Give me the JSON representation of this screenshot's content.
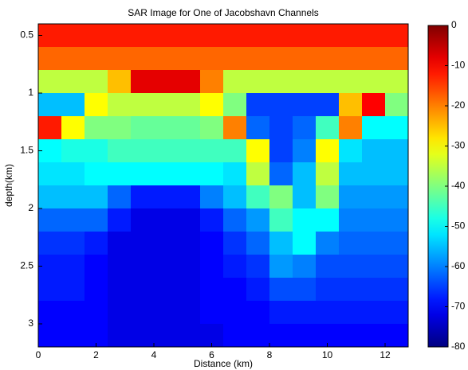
{
  "chart_data": {
    "type": "heatmap",
    "title": "SAR Image for One of Jacobshavn Channels",
    "x_label": "Distance (km)",
    "y_label": "depth(km)",
    "x": [
      0.4,
      1.2,
      2.0,
      2.8,
      3.6,
      4.4,
      5.2,
      6.0,
      6.8,
      7.6,
      8.4,
      9.2,
      10.0,
      10.8,
      11.6,
      12.4
    ],
    "y": [
      0.5,
      0.7,
      0.9,
      1.1,
      1.3,
      1.5,
      1.7,
      1.9,
      2.1,
      2.3,
      2.5,
      2.7,
      2.9,
      3.1
    ],
    "z": [
      [
        -12,
        -12,
        -12,
        -12,
        -12,
        -12,
        -12,
        -12,
        -12,
        -12,
        -12,
        -12,
        -12,
        -12,
        -12,
        -12
      ],
      [
        -18,
        -18,
        -18,
        -18,
        -18,
        -18,
        -18,
        -18,
        -18,
        -18,
        -18,
        -18,
        -18,
        -18,
        -18,
        -18
      ],
      [
        -35,
        -35,
        -35,
        -25,
        -8,
        -8,
        -8,
        -20,
        -35,
        -35,
        -35,
        -35,
        -35,
        -35,
        -35,
        -35
      ],
      [
        -55,
        -55,
        -30,
        -35,
        -35,
        -35,
        -35,
        -30,
        -40,
        -65,
        -65,
        -65,
        -65,
        -25,
        -10,
        -40
      ],
      [
        -12,
        -30,
        -40,
        -40,
        -42,
        -42,
        -42,
        -40,
        -20,
        -62,
        -65,
        -62,
        -45,
        -20,
        -50,
        -50
      ],
      [
        -50,
        -48,
        -48,
        -45,
        -45,
        -45,
        -45,
        -45,
        -45,
        -30,
        -65,
        -60,
        -30,
        -52,
        -55,
        -55
      ],
      [
        -52,
        -52,
        -50,
        -50,
        -50,
        -50,
        -50,
        -50,
        -52,
        -35,
        -62,
        -55,
        -35,
        -55,
        -55,
        -55
      ],
      [
        -55,
        -55,
        -55,
        -62,
        -68,
        -68,
        -68,
        -60,
        -55,
        -45,
        -40,
        -55,
        -40,
        -58,
        -58,
        -58
      ],
      [
        -62,
        -62,
        -62,
        -68,
        -72,
        -72,
        -72,
        -68,
        -62,
        -58,
        -45,
        -50,
        -50,
        -60,
        -60,
        -60
      ],
      [
        -66,
        -66,
        -68,
        -72,
        -72,
        -72,
        -72,
        -70,
        -66,
        -62,
        -55,
        -50,
        -60,
        -62,
        -62,
        -62
      ],
      [
        -68,
        -68,
        -70,
        -72,
        -72,
        -72,
        -72,
        -70,
        -68,
        -66,
        -58,
        -60,
        -64,
        -64,
        -64,
        -64
      ],
      [
        -68,
        -68,
        -70,
        -72,
        -72,
        -72,
        -72,
        -70,
        -70,
        -68,
        -64,
        -64,
        -66,
        -66,
        -66,
        -66
      ],
      [
        -70,
        -70,
        -70,
        -72,
        -72,
        -72,
        -72,
        -70,
        -70,
        -70,
        -68,
        -68,
        -68,
        -68,
        -68,
        -68
      ],
      [
        -70,
        -70,
        -70,
        -72,
        -72,
        -72,
        -72,
        -72,
        -70,
        -70,
        -70,
        -70,
        -70,
        -70,
        -70,
        -70
      ]
    ],
    "xlim": [
      0,
      12.8
    ],
    "ylim": [
      0.4,
      3.2
    ],
    "y_inverted": true,
    "xticks": [
      0,
      2,
      4,
      6,
      8,
      10,
      12
    ],
    "yticks": [
      0.5,
      1,
      1.5,
      2,
      2.5,
      3
    ],
    "clim": [
      -80,
      0
    ],
    "colormap": "jet",
    "cticks": [
      0,
      -10,
      -20,
      -30,
      -40,
      -50,
      -60,
      -70,
      -80
    ]
  }
}
